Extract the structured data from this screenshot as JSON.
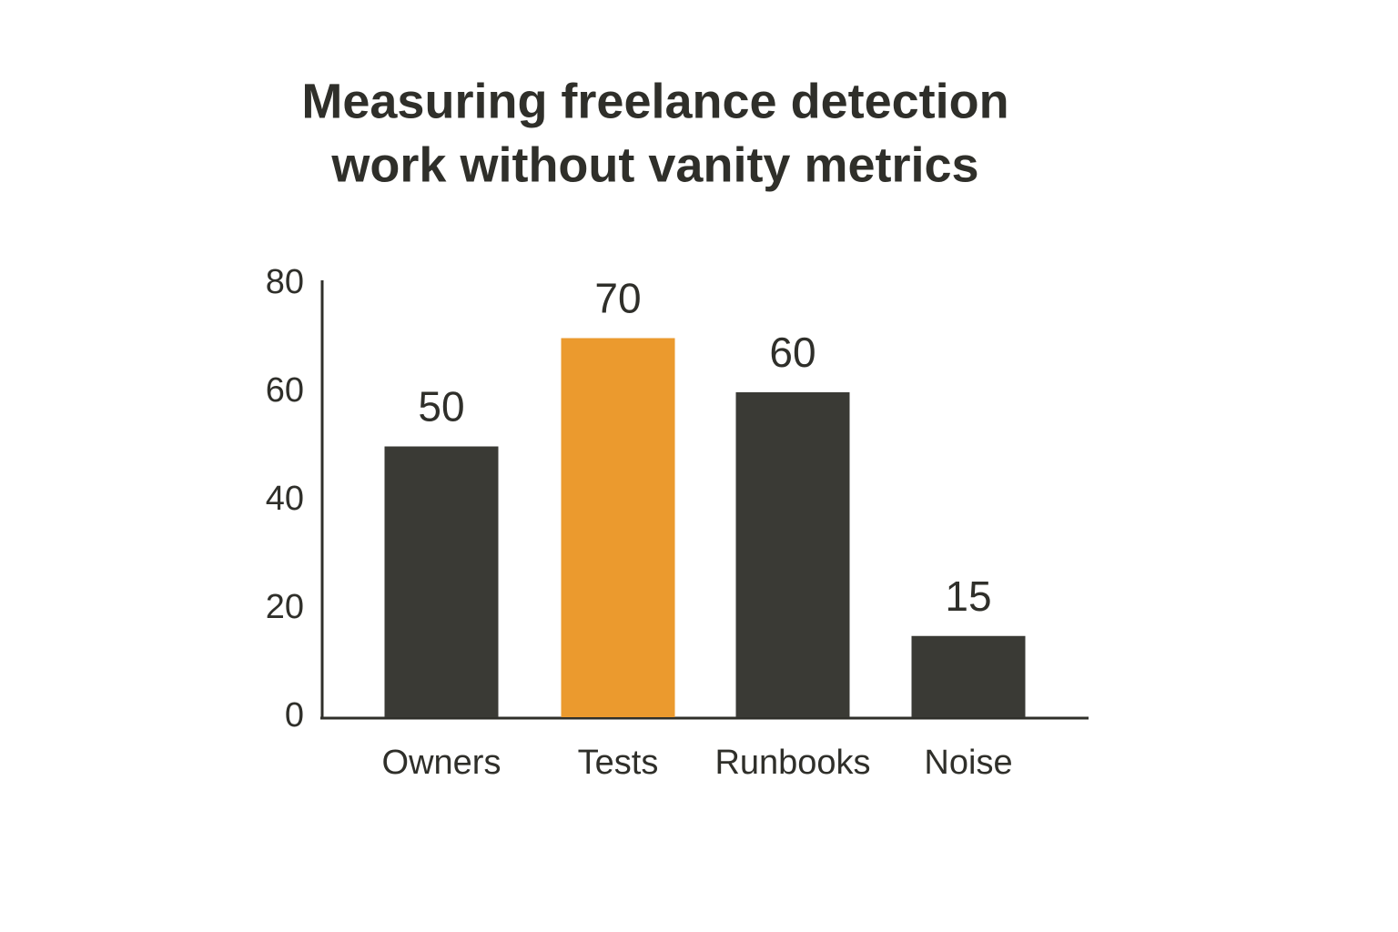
{
  "chart_data": {
    "type": "bar",
    "title": [
      "Measuring freelance detection",
      "work without vanity metrics"
    ],
    "categories": [
      "Owners",
      "Tests",
      "Runbooks",
      "Noise"
    ],
    "values": [
      50,
      70,
      60,
      15
    ],
    "colors": [
      "#3a3a35",
      "#eb9a2e",
      "#3a3a35",
      "#3a3a35"
    ],
    "ylim": [
      0,
      80
    ],
    "yticks": [
      0,
      20,
      40,
      60,
      80
    ],
    "grid": false
  }
}
